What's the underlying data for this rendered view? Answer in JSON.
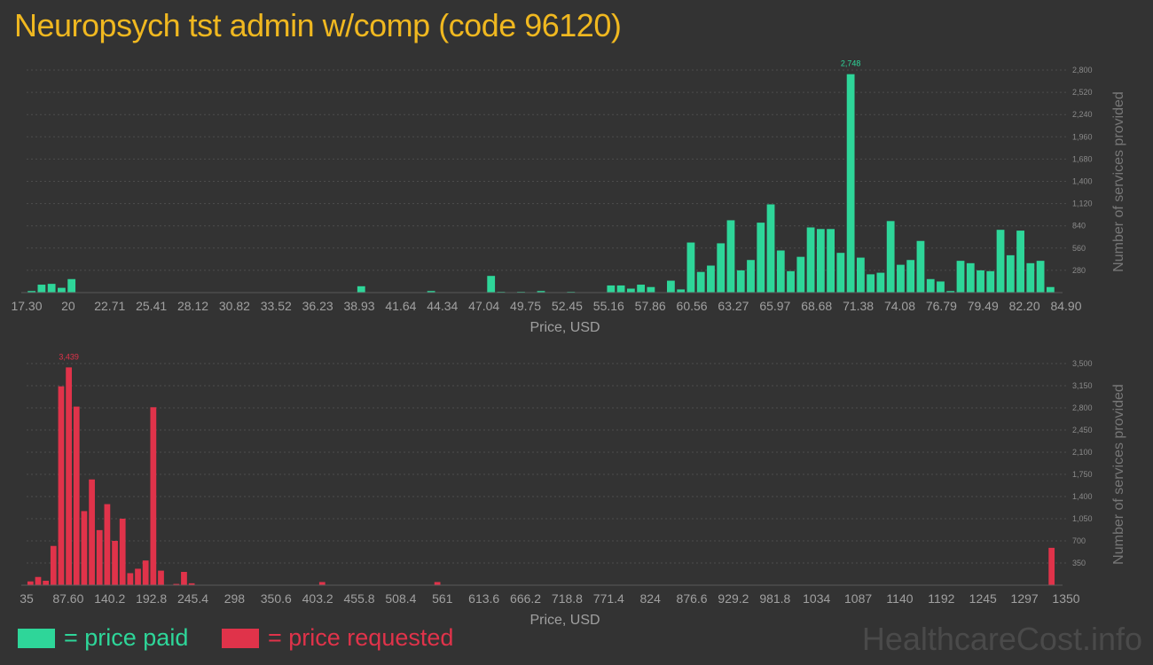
{
  "title": "Neuropsych tst admin w/comp (code 96120)",
  "colors": {
    "paid": "#2ed699",
    "requested": "#e0334a",
    "title": "#f0b820"
  },
  "legend": {
    "paid_label": "= price paid",
    "requested_label": "= price requested"
  },
  "watermark": "HealthcareCost.info",
  "chart_data": [
    {
      "type": "bar",
      "series": [
        {
          "name": "price paid",
          "color": "#2ed699"
        }
      ],
      "xlabel": "Price, USD",
      "ylabel": "Number of services provided",
      "xlim": [
        17.3,
        84.9
      ],
      "ylim": [
        0,
        2800
      ],
      "grid": true,
      "x_ticks": [
        "17.30",
        "20",
        "22.71",
        "25.41",
        "28.12",
        "30.82",
        "33.52",
        "36.23",
        "38.93",
        "41.64",
        "44.34",
        "47.04",
        "49.75",
        "52.45",
        "55.16",
        "57.86",
        "60.56",
        "63.27",
        "65.97",
        "68.68",
        "71.38",
        "74.08",
        "76.79",
        "79.49",
        "82.20",
        "84.90"
      ],
      "y_ticks": [
        "280",
        "560",
        "840",
        "1,120",
        "1,400",
        "1,680",
        "1,960",
        "2,240",
        "2,520",
        "2,800"
      ],
      "y_tick_values": [
        280,
        560,
        840,
        1120,
        1400,
        1680,
        1960,
        2240,
        2520,
        2800
      ],
      "peak_label": "2,748",
      "values": [
        20,
        100,
        110,
        60,
        170,
        0,
        0,
        0,
        0,
        0,
        0,
        0,
        0,
        0,
        0,
        0,
        0,
        0,
        0,
        0,
        0,
        0,
        0,
        0,
        0,
        0,
        0,
        0,
        0,
        0,
        0,
        0,
        0,
        80,
        0,
        0,
        0,
        0,
        0,
        0,
        20,
        0,
        0,
        0,
        0,
        0,
        210,
        10,
        0,
        10,
        0,
        20,
        0,
        0,
        10,
        0,
        0,
        0,
        90,
        90,
        50,
        100,
        70,
        0,
        150,
        40,
        630,
        260,
        340,
        620,
        910,
        280,
        410,
        880,
        1110,
        530,
        270,
        450,
        820,
        800,
        800,
        500,
        2748,
        440,
        230,
        250,
        900,
        350,
        410,
        650,
        170,
        140,
        20,
        400,
        370,
        280,
        270,
        790,
        470,
        780,
        370,
        400,
        70
      ]
    },
    {
      "type": "bar",
      "series": [
        {
          "name": "price requested",
          "color": "#e0334a"
        }
      ],
      "xlabel": "Price, USD",
      "ylabel": "Number of services provided",
      "xlim": [
        35,
        1350
      ],
      "ylim": [
        0,
        3500
      ],
      "grid": true,
      "x_ticks": [
        "35",
        "87.60",
        "140.2",
        "192.8",
        "245.4",
        "298",
        "350.6",
        "403.2",
        "455.8",
        "508.4",
        "561",
        "613.6",
        "666.2",
        "718.8",
        "771.4",
        "824",
        "876.6",
        "929.2",
        "981.8",
        "1034",
        "1087",
        "1140",
        "1192",
        "1245",
        "1297",
        "1350"
      ],
      "y_ticks": [
        "350",
        "700",
        "1,050",
        "1,400",
        "1,750",
        "2,100",
        "2,450",
        "2,800",
        "3,150",
        "3,500"
      ],
      "y_tick_values": [
        350,
        700,
        1050,
        1400,
        1750,
        2100,
        2450,
        2800,
        3150,
        3500
      ],
      "peak_label": "3,439",
      "values": [
        60,
        130,
        70,
        620,
        3140,
        3439,
        2820,
        1170,
        1670,
        870,
        1280,
        700,
        1050,
        190,
        260,
        390,
        2810,
        230,
        0,
        20,
        210,
        30,
        0,
        0,
        0,
        0,
        0,
        0,
        0,
        0,
        0,
        0,
        0,
        0,
        0,
        0,
        0,
        0,
        50,
        0,
        0,
        0,
        0,
        0,
        0,
        0,
        0,
        0,
        0,
        0,
        0,
        0,
        0,
        50,
        0,
        0,
        0,
        0,
        0,
        0,
        0,
        0,
        0,
        0,
        0,
        0,
        0,
        0,
        0,
        0,
        0,
        0,
        0,
        0,
        0,
        0,
        0,
        0,
        0,
        0,
        0,
        0,
        0,
        0,
        0,
        0,
        0,
        0,
        0,
        0,
        0,
        0,
        0,
        0,
        0,
        0,
        0,
        0,
        0,
        0,
        0,
        0,
        0,
        0,
        0,
        0,
        0,
        0,
        0,
        0,
        0,
        0,
        0,
        0,
        0,
        0,
        0,
        0,
        0,
        0,
        0,
        0,
        0,
        0,
        0,
        0,
        0,
        0,
        0,
        0,
        0,
        0,
        0,
        590
      ]
    }
  ]
}
